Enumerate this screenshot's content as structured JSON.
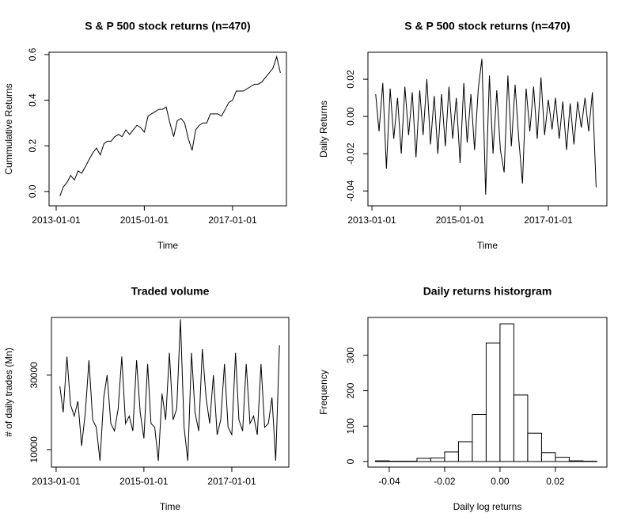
{
  "chart_data": [
    {
      "type": "line",
      "title": "S & P 500 stock returns (n=470)",
      "xlabel": "Time",
      "ylabel": "Cummulative Returns",
      "color": "#000000",
      "xlim": [
        "2012-11-03",
        "2018-03-23"
      ],
      "xticks": [
        "2013-01-01",
        "2015-01-01",
        "2017-01-01"
      ],
      "ylim": [
        -0.063,
        0.61
      ],
      "yticks": [
        {
          "value": 0,
          "label": "0.0"
        },
        0.2,
        0.4,
        0.6
      ],
      "x": [
        "2013-02-01",
        "2013-03-01",
        "2013-04-01",
        "2013-05-01",
        "2013-06-01",
        "2013-07-01",
        "2013-08-01",
        "2013-09-01",
        "2013-10-01",
        "2013-11-01",
        "2013-12-01",
        "2014-01-01",
        "2014-02-01",
        "2014-03-01",
        "2014-04-01",
        "2014-05-01",
        "2014-06-01",
        "2014-07-01",
        "2014-08-01",
        "2014-09-01",
        "2014-10-01",
        "2014-11-01",
        "2014-12-01",
        "2015-01-01",
        "2015-02-01",
        "2015-03-01",
        "2015-04-01",
        "2015-05-01",
        "2015-06-01",
        "2015-07-01",
        "2015-08-01",
        "2015-09-01",
        "2015-10-01",
        "2015-11-01",
        "2015-12-01",
        "2016-01-01",
        "2016-02-01",
        "2016-03-01",
        "2016-04-01",
        "2016-05-01",
        "2016-06-01",
        "2016-07-01",
        "2016-08-01",
        "2016-09-01",
        "2016-10-01",
        "2016-11-01",
        "2016-12-01",
        "2017-01-01",
        "2017-02-01",
        "2017-03-01",
        "2017-04-01",
        "2017-05-01",
        "2017-06-01",
        "2017-07-01",
        "2017-08-01",
        "2017-09-01",
        "2017-10-01",
        "2017-11-01",
        "2017-12-01",
        "2018-01-01",
        "2018-02-01"
      ],
      "values": [
        -0.02,
        0.02,
        0.04,
        0.07,
        0.05,
        0.09,
        0.08,
        0.11,
        0.14,
        0.17,
        0.19,
        0.16,
        0.21,
        0.22,
        0.22,
        0.24,
        0.25,
        0.24,
        0.27,
        0.25,
        0.27,
        0.29,
        0.28,
        0.26,
        0.33,
        0.34,
        0.35,
        0.36,
        0.36,
        0.37,
        0.3,
        0.24,
        0.31,
        0.32,
        0.3,
        0.23,
        0.18,
        0.27,
        0.29,
        0.3,
        0.3,
        0.34,
        0.34,
        0.34,
        0.33,
        0.36,
        0.39,
        0.4,
        0.44,
        0.44,
        0.44,
        0.45,
        0.46,
        0.47,
        0.47,
        0.48,
        0.5,
        0.52,
        0.54,
        0.59,
        0.52
      ]
    },
    {
      "type": "line",
      "title": "S & P 500 stock returns (n=470)",
      "xlabel": "Time",
      "ylabel": "Daily Returns",
      "color": "#000000",
      "xlim": [
        "2012-11-29",
        "2018-05-01"
      ],
      "xticks": [
        "2013-01-01",
        "2015-01-01",
        "2017-01-01"
      ],
      "ylim": [
        -0.048,
        0.0345
      ],
      "yticks": [
        -0.04,
        -0.02,
        {
          "value": 0,
          "label": "0.00"
        },
        0.02
      ],
      "x": [
        "2013-02-01",
        "2013-03-01",
        "2013-04-01",
        "2013-05-01",
        "2013-06-01",
        "2013-07-01",
        "2013-08-01",
        "2013-09-01",
        "2013-10-01",
        "2013-11-01",
        "2013-12-01",
        "2014-01-01",
        "2014-02-01",
        "2014-03-01",
        "2014-04-01",
        "2014-05-01",
        "2014-06-01",
        "2014-07-01",
        "2014-08-01",
        "2014-09-01",
        "2014-10-01",
        "2014-11-01",
        "2014-12-01",
        "2015-01-01",
        "2015-02-01",
        "2015-03-01",
        "2015-04-01",
        "2015-05-01",
        "2015-06-01",
        "2015-07-01",
        "2015-08-01",
        "2015-09-01",
        "2015-10-01",
        "2015-11-01",
        "2015-12-01",
        "2016-01-01",
        "2016-02-01",
        "2016-03-01",
        "2016-04-01",
        "2016-05-01",
        "2016-06-01",
        "2016-07-01",
        "2016-08-01",
        "2016-09-01",
        "2016-10-01",
        "2016-11-01",
        "2016-12-01",
        "2017-01-01",
        "2017-02-01",
        "2017-03-01",
        "2017-04-01",
        "2017-05-01",
        "2017-06-01",
        "2017-07-01",
        "2017-08-01",
        "2017-09-01",
        "2017-10-01",
        "2017-11-01",
        "2017-12-01",
        "2018-01-01",
        "2018-02-01"
      ],
      "values": [
        0.012,
        -0.008,
        0.018,
        -0.028,
        0.015,
        -0.012,
        0.01,
        -0.02,
        0.016,
        -0.01,
        0.013,
        -0.022,
        0.014,
        -0.01,
        0.02,
        -0.015,
        0.011,
        -0.02,
        0.012,
        -0.016,
        0.016,
        -0.012,
        0.01,
        -0.025,
        0.018,
        -0.014,
        0.012,
        -0.018,
        0.015,
        0.031,
        -0.042,
        0.022,
        -0.02,
        0.014,
        -0.018,
        -0.03,
        0.022,
        -0.016,
        0.017,
        -0.012,
        -0.036,
        0.015,
        -0.008,
        0.016,
        -0.012,
        0.021,
        -0.01,
        0.009,
        -0.007,
        0.01,
        -0.012,
        0.008,
        -0.018,
        0.007,
        -0.015,
        0.008,
        -0.006,
        0.01,
        -0.008,
        0.013,
        -0.038
      ]
    },
    {
      "type": "line",
      "title": "Traded volume",
      "xlabel": "Time",
      "ylabel": "# of daily trades (Mn)",
      "color": "#000000",
      "xlim": [
        "2012-11-23",
        "2018-04-20"
      ],
      "xticks": [
        "2013-01-01",
        "2015-01-01",
        "2017-01-01"
      ],
      "ylim": [
        5300,
        45500
      ],
      "yticks": [
        10000,
        30000
      ],
      "x": [
        "2013-02-01",
        "2013-03-01",
        "2013-04-01",
        "2013-05-01",
        "2013-06-01",
        "2013-07-01",
        "2013-08-01",
        "2013-09-01",
        "2013-10-01",
        "2013-11-01",
        "2013-12-01",
        "2014-01-01",
        "2014-02-01",
        "2014-03-01",
        "2014-04-01",
        "2014-05-01",
        "2014-06-01",
        "2014-07-01",
        "2014-08-01",
        "2014-09-01",
        "2014-10-01",
        "2014-11-01",
        "2014-12-01",
        "2015-01-01",
        "2015-02-01",
        "2015-03-01",
        "2015-04-01",
        "2015-05-01",
        "2015-06-01",
        "2015-07-01",
        "2015-08-01",
        "2015-09-01",
        "2015-10-01",
        "2015-11-01",
        "2015-12-01",
        "2016-01-01",
        "2016-02-01",
        "2016-03-01",
        "2016-04-01",
        "2016-05-01",
        "2016-06-01",
        "2016-07-01",
        "2016-08-01",
        "2016-09-01",
        "2016-10-01",
        "2016-11-01",
        "2016-12-01",
        "2017-01-01",
        "2017-02-01",
        "2017-03-01",
        "2017-04-01",
        "2017-05-01",
        "2017-06-01",
        "2017-07-01",
        "2017-08-01",
        "2017-09-01",
        "2017-10-01",
        "2017-11-01",
        "2017-12-01",
        "2018-01-01",
        "2018-02-01"
      ],
      "values": [
        27000,
        20000,
        35000,
        22000,
        19000,
        23000,
        11000,
        20000,
        34000,
        18000,
        16000,
        7000,
        24000,
        30000,
        17000,
        15000,
        21000,
        35000,
        17000,
        19000,
        15000,
        34000,
        20000,
        13000,
        33000,
        17000,
        16000,
        7000,
        25000,
        18000,
        36000,
        18000,
        21000,
        45000,
        16000,
        7000,
        36000,
        20000,
        15000,
        37000,
        24000,
        17000,
        30000,
        14000,
        18000,
        33000,
        16000,
        14000,
        36000,
        18000,
        15000,
        33000,
        17000,
        19000,
        14000,
        33000,
        16000,
        17000,
        24000,
        7000,
        38000
      ]
    },
    {
      "type": "histogram",
      "title": "Daily returns historgram",
      "xlabel": "Daily log returns",
      "ylabel": "Frequency",
      "color": "#ffffff",
      "xlim": [
        -0.0477,
        0.0386
      ],
      "xticks": [
        -0.04,
        -0.02,
        {
          "value": 0,
          "label": "0.00"
        },
        0.02
      ],
      "ylim": [
        -15.7,
        407
      ],
      "yticks": [
        0,
        100,
        200,
        300
      ],
      "bins": [
        -0.045,
        -0.04,
        -0.035,
        -0.03,
        -0.025,
        -0.02,
        -0.015,
        -0.01,
        -0.005,
        0,
        0.005,
        0.01,
        0.015,
        0.02,
        0.025,
        0.03,
        0.035
      ],
      "values": [
        2,
        1,
        1,
        9,
        10,
        27,
        56,
        133,
        335,
        389,
        188,
        80,
        25,
        12,
        2,
        1
      ]
    }
  ]
}
